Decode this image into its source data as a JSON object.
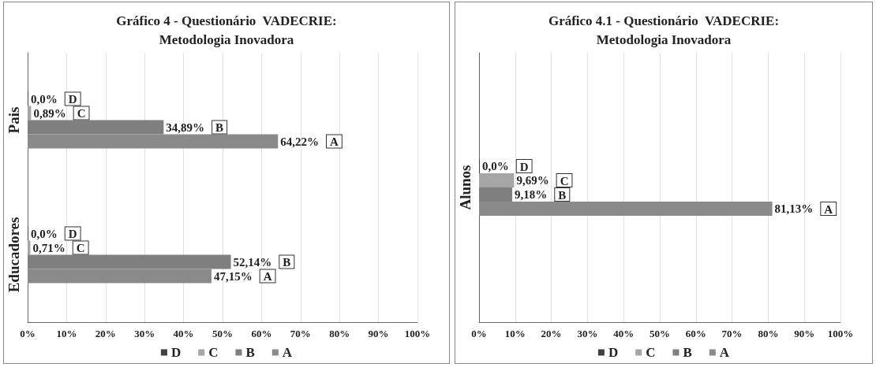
{
  "chart_data": [
    {
      "type": "bar",
      "orientation": "horizontal",
      "title": "Gráfico 4 - Questionário  VADECRIE:\nMetodologia Inovadora",
      "categories": [
        "Pais",
        "Educadores"
      ],
      "series": [
        {
          "name": "D",
          "color": "#404040",
          "values": [
            0,
            0
          ],
          "value_labels": [
            "0,0%",
            "0,0%"
          ]
        },
        {
          "name": "C",
          "color": "#a6a6a6",
          "values": [
            0.89,
            0.71
          ],
          "value_labels": [
            "0,89%",
            "0,71%"
          ]
        },
        {
          "name": "B",
          "color": "#7f7f7f",
          "values": [
            34.89,
            52.14
          ],
          "value_labels": [
            "34,89%",
            "52,14%"
          ]
        },
        {
          "name": "A",
          "color": "#8a8a8a",
          "values": [
            64.22,
            47.15
          ],
          "value_labels": [
            "64,22%",
            "47,15%"
          ]
        }
      ],
      "xlim": [
        0,
        100
      ],
      "xticks": [
        {
          "value": 0,
          "label": "0%"
        },
        {
          "value": 10,
          "label": "10%"
        },
        {
          "value": 20,
          "label": "20%"
        },
        {
          "value": 30,
          "label": "30%"
        },
        {
          "value": 40,
          "label": "40%"
        },
        {
          "value": 50,
          "label": "50%"
        },
        {
          "value": 60,
          "label": "60%"
        },
        {
          "value": 70,
          "label": "70%"
        },
        {
          "value": 80,
          "label": "80%"
        },
        {
          "value": 90,
          "label": "90%"
        },
        {
          "value": 100,
          "label": "100%"
        }
      ],
      "grid": "x",
      "legend": "bottom"
    },
    {
      "type": "bar",
      "orientation": "horizontal",
      "title": "Gráfico 4.1 - Questionário  VADECRIE:\nMetodologia Inovadora",
      "categories": [
        "Alunos"
      ],
      "series": [
        {
          "name": "D",
          "color": "#404040",
          "values": [
            0
          ],
          "value_labels": [
            "0,0%"
          ]
        },
        {
          "name": "C",
          "color": "#a6a6a6",
          "values": [
            9.69
          ],
          "value_labels": [
            "9,69%"
          ]
        },
        {
          "name": "B",
          "color": "#7f7f7f",
          "values": [
            9.18
          ],
          "value_labels": [
            "9,18%"
          ]
        },
        {
          "name": "A",
          "color": "#8a8a8a",
          "values": [
            81.13
          ],
          "value_labels": [
            "81,13%"
          ]
        }
      ],
      "xlim": [
        0,
        100
      ],
      "xticks": [
        {
          "value": 0,
          "label": "0%"
        },
        {
          "value": 10,
          "label": "10%"
        },
        {
          "value": 20,
          "label": "20%"
        },
        {
          "value": 30,
          "label": "30%"
        },
        {
          "value": 40,
          "label": "40%"
        },
        {
          "value": 50,
          "label": "50%"
        },
        {
          "value": 60,
          "label": "60%"
        },
        {
          "value": 70,
          "label": "70%"
        },
        {
          "value": 80,
          "label": "80%"
        },
        {
          "value": 90,
          "label": "90%"
        },
        {
          "value": 100,
          "label": "100%"
        }
      ],
      "grid": "x",
      "legend": "bottom"
    }
  ]
}
